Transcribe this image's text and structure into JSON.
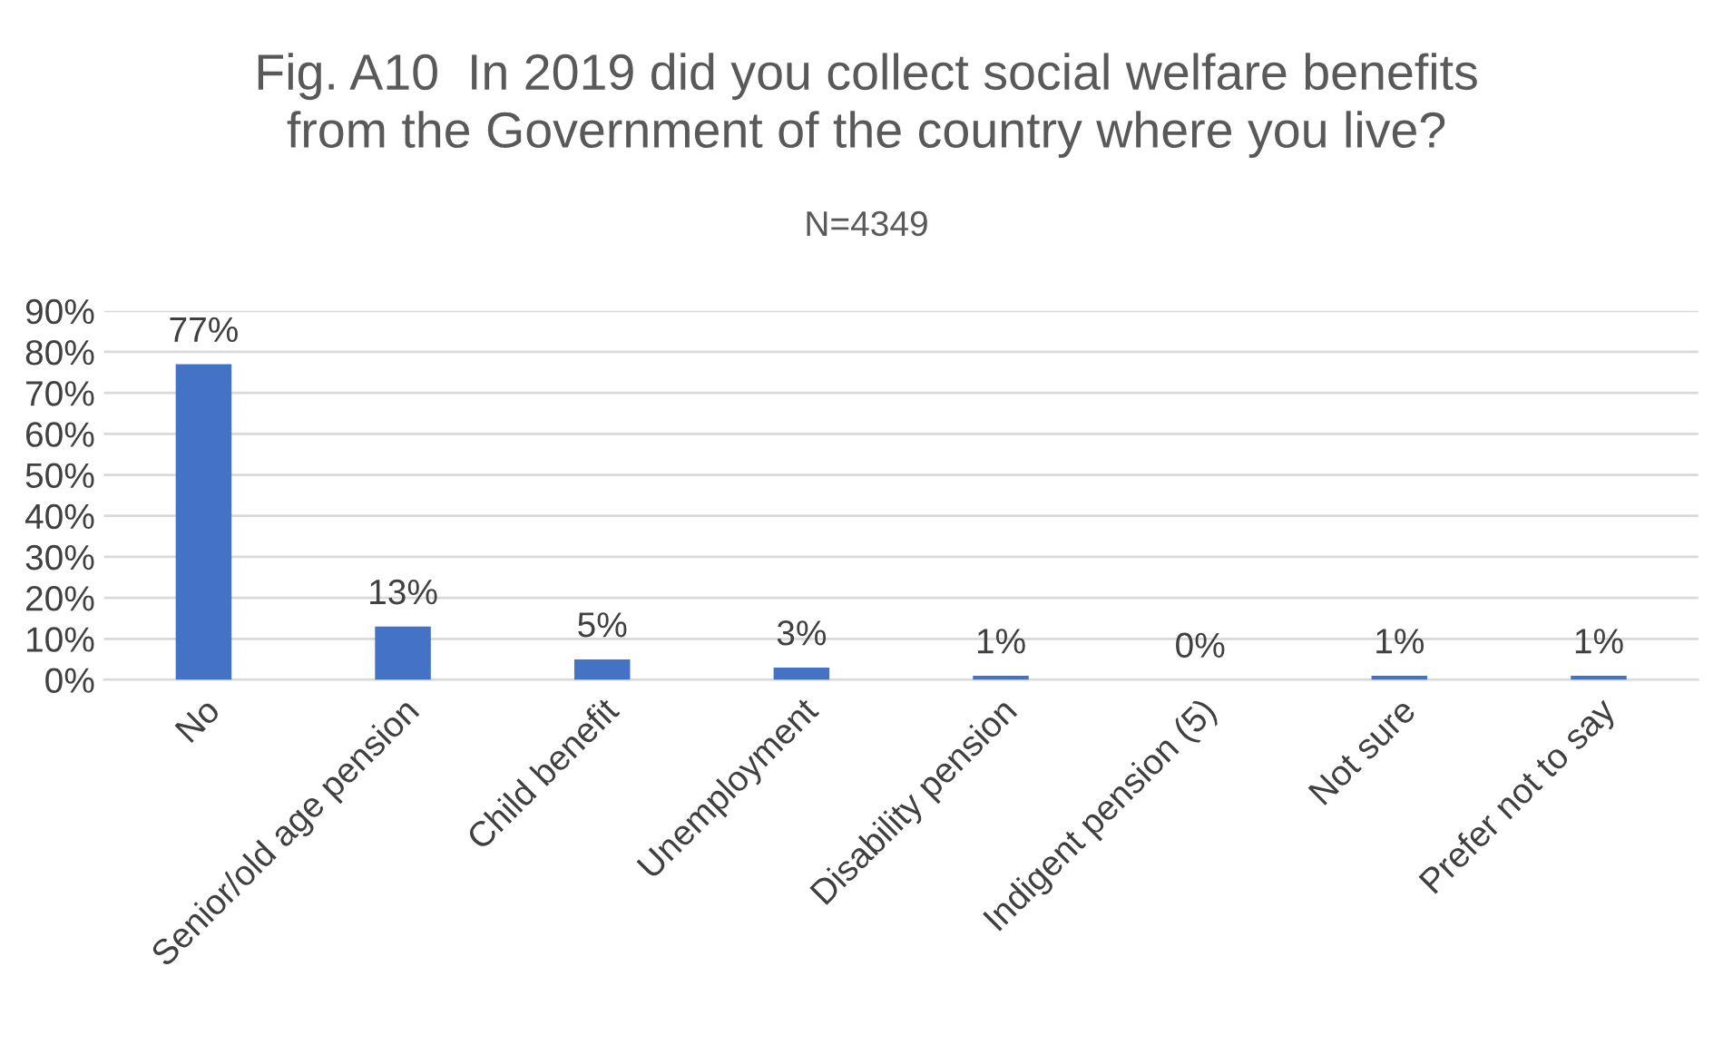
{
  "chart_data": {
    "type": "bar",
    "title": "Fig. A10  In 2019 did you collect social welfare benefits\nfrom the Government of the country where you live?",
    "subtitle": "N=4349",
    "categories": [
      "No",
      "Senior/old age pension",
      "Child benefit",
      "Unemployment",
      "Disability pension",
      "Indigent pension (5)",
      "Not sure",
      "Prefer not to say"
    ],
    "values": [
      77,
      13,
      5,
      3,
      1,
      0,
      1,
      1
    ],
    "value_labels": [
      "77%",
      "13%",
      "5%",
      "3%",
      "1%",
      "0%",
      "1%",
      "1%"
    ],
    "color": "#4472c4",
    "ylim": [
      0,
      90
    ],
    "yticks": [
      {
        "value": 0,
        "label": "0%"
      },
      {
        "value": 10,
        "label": "10%"
      },
      {
        "value": 20,
        "label": "20%"
      },
      {
        "value": 30,
        "label": "30%"
      },
      {
        "value": 40,
        "label": "40%"
      },
      {
        "value": 50,
        "label": "50%"
      },
      {
        "value": 60,
        "label": "60%"
      },
      {
        "value": 70,
        "label": "70%"
      },
      {
        "value": 80,
        "label": "80%"
      },
      {
        "value": 90,
        "label": "90%"
      }
    ],
    "grid": "y"
  }
}
